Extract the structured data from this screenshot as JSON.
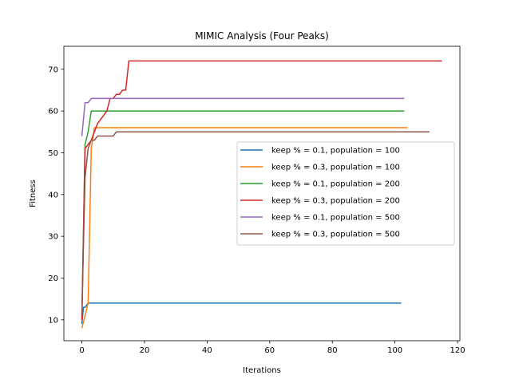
{
  "chart_data": {
    "type": "line",
    "title": "MIMIC Analysis (Four Peaks)",
    "xlabel": "Iterations",
    "ylabel": "Fitness",
    "xlim": [
      -5.75,
      120.75
    ],
    "ylim": [
      5.0,
      75.5
    ],
    "xticks": [
      0,
      20,
      40,
      60,
      80,
      100,
      120
    ],
    "yticks": [
      10,
      20,
      30,
      40,
      50,
      60,
      70
    ],
    "grid": false,
    "legend_position": "center-right",
    "series": [
      {
        "name": "keep % = 0.1, population = 100",
        "color": "#1f77b4",
        "points": [
          [
            0,
            9
          ],
          [
            0.5,
            13
          ],
          [
            1,
            13
          ],
          [
            2,
            14
          ],
          [
            102,
            14
          ]
        ]
      },
      {
        "name": "keep % = 0.3, population = 100",
        "color": "#ff7f0e",
        "points": [
          [
            0,
            8
          ],
          [
            1,
            11
          ],
          [
            2,
            14
          ],
          [
            3,
            51
          ],
          [
            4,
            56
          ],
          [
            104,
            56
          ]
        ]
      },
      {
        "name": "keep % = 0.1, population = 200",
        "color": "#2ca02c",
        "points": [
          [
            0,
            10
          ],
          [
            1,
            52
          ],
          [
            2,
            55
          ],
          [
            3,
            60
          ],
          [
            103,
            60
          ]
        ]
      },
      {
        "name": "keep % = 0.3, population = 200",
        "color": "#d62728",
        "points": [
          [
            0,
            10
          ],
          [
            1,
            51
          ],
          [
            2,
            52
          ],
          [
            3,
            53
          ],
          [
            4,
            55
          ],
          [
            5,
            57
          ],
          [
            6,
            58
          ],
          [
            7,
            59
          ],
          [
            8,
            60
          ],
          [
            9,
            63
          ],
          [
            10,
            63
          ],
          [
            11,
            64
          ],
          [
            12,
            64
          ],
          [
            13,
            65
          ],
          [
            14,
            65
          ],
          [
            15,
            72
          ],
          [
            115,
            72
          ]
        ]
      },
      {
        "name": "keep % = 0.1, population = 500",
        "color": "#9467bd",
        "points": [
          [
            0,
            54
          ],
          [
            1,
            62
          ],
          [
            2,
            62
          ],
          [
            3,
            63
          ],
          [
            103,
            63
          ]
        ]
      },
      {
        "name": "keep % = 0.3, population = 500",
        "color": "#8c564b",
        "points": [
          [
            0,
            11
          ],
          [
            1,
            44
          ],
          [
            2,
            51
          ],
          [
            3,
            53
          ],
          [
            4,
            53
          ],
          [
            5,
            54
          ],
          [
            10,
            54
          ],
          [
            11,
            55
          ],
          [
            111,
            55
          ]
        ]
      }
    ]
  }
}
